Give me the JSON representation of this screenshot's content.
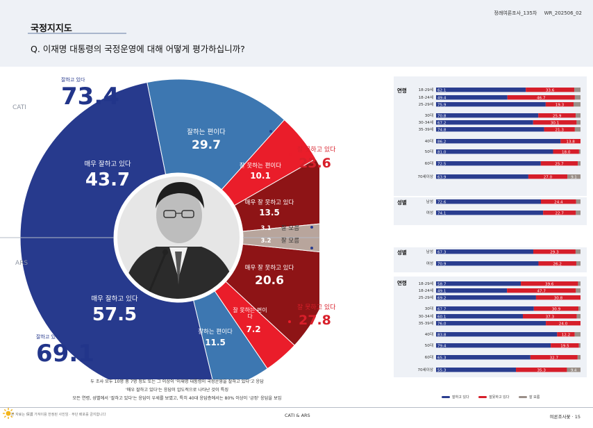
{
  "header": {
    "publication": "정례여론조사_135차",
    "issue": "WR_202506_02",
    "section_title": "국정지지도",
    "question": "Q. 이재명 대통령의 국정운영에 대해 어떻게 평가하십니까?"
  },
  "colors": {
    "very_good": "#273a8d",
    "good": "#3d77b1",
    "bad": "#ea1d2a",
    "very_bad": "#8e1416",
    "dont_know": "#b8a59c",
    "positive_bar": "#2a3d8f",
    "negative_bar": "#d61e2a",
    "dk_bar": "#9a8f88"
  },
  "chart_data": [
    {
      "type": "pie",
      "method": "CATI",
      "categories": [
        "매우 잘하고 있다",
        "잘하는 편이다",
        "잘 못하는 편이다",
        "매우 잘 못하고 있다",
        "잘 모름"
      ],
      "values": [
        43.7,
        29.7,
        10.1,
        13.5,
        3.1
      ],
      "positive_label": "잘하고 있다",
      "positive_total": 73.4,
      "negative_label": "잘 못하고 있다",
      "negative_total": 23.6
    },
    {
      "type": "pie",
      "method": "ARS",
      "categories": [
        "매우 잘하고 있다",
        "잘하는 편이다",
        "잘 못하는 편이다",
        "매우 잘 못하고 있다",
        "잘 모름"
      ],
      "values": [
        57.5,
        11.5,
        7.2,
        20.6,
        3.2
      ],
      "positive_label": "잘하고 있다",
      "positive_total": 69.1,
      "negative_label": "잘 못하고 있다",
      "negative_total": 27.8
    },
    {
      "type": "bar",
      "method": "CATI",
      "stacked": true,
      "groups": [
        {
          "name": "연령",
          "rows": [
            {
              "label": "18-29세",
              "pos": 62.1,
              "neg": 33.6
            },
            {
              "label": "18-24세",
              "pos": 49.4,
              "neg": 46.7
            },
            {
              "label": "25-29세",
              "pos": 75.9,
              "neg": 19.3
            },
            {
              "label": "30대",
              "pos": 70.8,
              "neg": 25.9
            },
            {
              "label": "30-34세",
              "pos": 67.2,
              "neg": 30.1
            },
            {
              "label": "35-39세",
              "pos": 74.8,
              "neg": 21.3
            },
            {
              "label": "40대",
              "pos": 86.2,
              "neg": 13.8
            },
            {
              "label": "50대",
              "pos": 81.0,
              "neg": 18.0
            },
            {
              "label": "60대",
              "pos": 72.5,
              "neg": 25.7
            },
            {
              "label": "70세이상",
              "pos": 63.9,
              "neg": 27.0,
              "dk": 9.1
            }
          ]
        },
        {
          "name": "성별",
          "rows": [
            {
              "label": "남성",
              "pos": 72.6,
              "neg": 24.4
            },
            {
              "label": "여성",
              "pos": 74.1,
              "neg": 22.7
            }
          ]
        }
      ]
    },
    {
      "type": "bar",
      "method": "ARS",
      "stacked": true,
      "groups": [
        {
          "name": "성별",
          "rows": [
            {
              "label": "남성",
              "pos": 67.3,
              "neg": 29.3
            },
            {
              "label": "여성",
              "pos": 70.9,
              "neg": 26.2
            }
          ]
        },
        {
          "name": "연령",
          "rows": [
            {
              "label": "18-29세",
              "pos": 58.7,
              "neg": 39.6
            },
            {
              "label": "18-24세",
              "pos": 49.1,
              "neg": 47.7
            },
            {
              "label": "25-29세",
              "pos": 69.2,
              "neg": 30.8
            },
            {
              "label": "30대",
              "pos": 67.7,
              "neg": 30.9
            },
            {
              "label": "30-34세",
              "pos": 60.1,
              "neg": 37.3
            },
            {
              "label": "35-39세",
              "pos": 76.0,
              "neg": 24.0
            },
            {
              "label": "40대",
              "pos": 83.8,
              "neg": 12.2
            },
            {
              "label": "50대",
              "pos": 79.4,
              "neg": 19.5
            },
            {
              "label": "60대",
              "pos": 65.3,
              "neg": 32.7
            },
            {
              "label": "70세이상",
              "pos": 55.3,
              "neg": 35.3,
              "dk": 9.4
            }
          ]
        }
      ]
    }
  ],
  "legend": [
    "잘하고 있다",
    "잘못하고 있다",
    "잘 모름"
  ],
  "summary": [
    "두 조사 모두 10명 중 7명 정도 또는 그 이상이 '이재명 대통령이 국정운영을 잘하고 있다'고 응답",
    "'매우 잘하고 있다'는 응답이 압도적으로 나타난 것이 특징",
    "모든 연령, 성별에서 '잘하고 있다'는 응답이 우세를 보였고, 특히 40대 응답층에서는 80% 이상이 '긍정' 응답을 보임"
  ],
  "footer": {
    "left": "본 자료는 保護 가져이용 한정된 사진임 · 무단 배포를 금지합니다",
    "middle": "CATI & ARS",
    "right": "여론조사꽃 · 15"
  }
}
